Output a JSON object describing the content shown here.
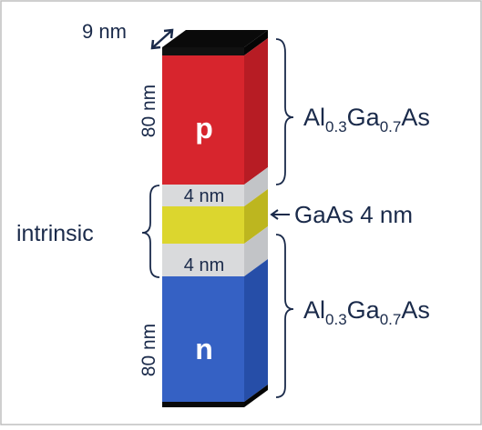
{
  "diagram": {
    "dimensions": {
      "width_label": "9 nm",
      "p_thickness_label": "80 nm",
      "n_thickness_label": "80 nm",
      "top_spacer_label": "4 nm",
      "bottom_spacer_label": "4 nm"
    },
    "layers": {
      "p_label": "p",
      "n_label": "n",
      "p_material": {
        "base": "Al",
        "sub1": "0.3",
        "mid": "Ga",
        "sub2": "0.7",
        "tail": "As"
      },
      "n_material": {
        "base": "Al",
        "sub1": "0.3",
        "mid": "Ga",
        "sub2": "0.7",
        "tail": "As"
      },
      "well_label": "GaAs 4 nm",
      "intrinsic_label": "intrinsic"
    },
    "colors": {
      "p_front": "#d7252d",
      "p_side": "#b71c24",
      "n_front": "#3561c4",
      "n_side": "#264ea8",
      "spacer_front": "#d9dadc",
      "spacer_side": "#c2c4c7",
      "well_front": "#dcd62e",
      "well_side": "#bdb61f",
      "cap": "#0a0a0a",
      "text": "#1a2a4a",
      "border": "#bfbfbf"
    }
  }
}
